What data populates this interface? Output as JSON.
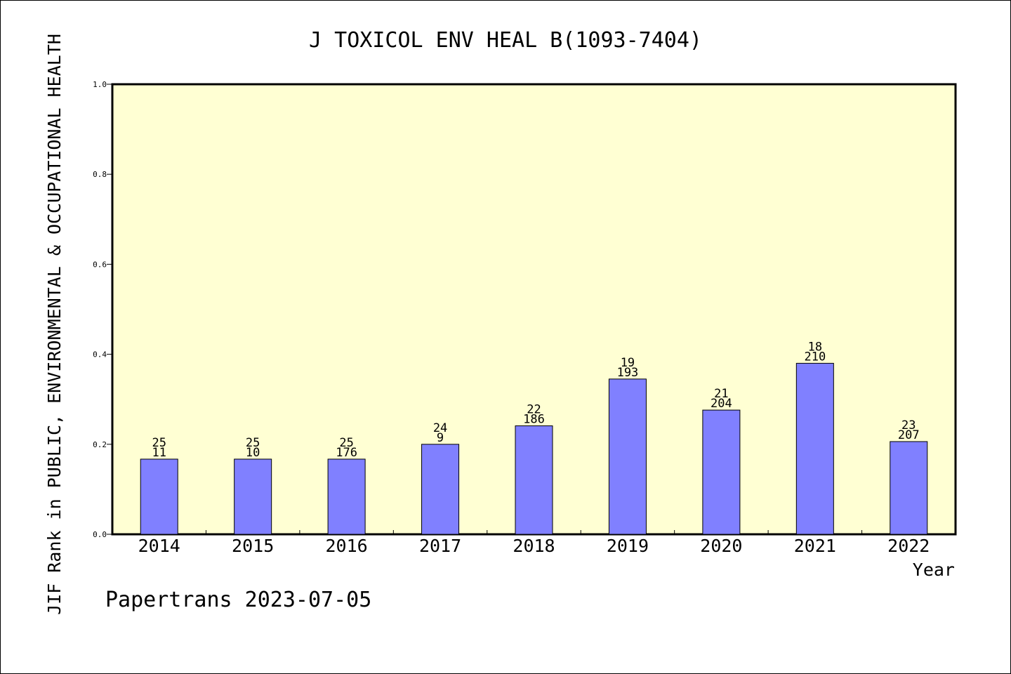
{
  "chart_data": {
    "type": "bar",
    "title": "J TOXICOL ENV HEAL B(1093-7404)",
    "ylabel": "JIF Rank in PUBLIC, ENVIRONMENTAL & OCCUPATIONAL HEALTH",
    "xlabel": "Year",
    "ylim": [
      0,
      1.0
    ],
    "yticks": [
      "0.0",
      "0.2",
      "0.4",
      "0.6",
      "0.8",
      "1.0"
    ],
    "categories": [
      "2014",
      "2015",
      "2016",
      "2017",
      "2018",
      "2019",
      "2020",
      "2021",
      "2022"
    ],
    "values": [
      0.167,
      0.167,
      0.167,
      0.2,
      0.241,
      0.345,
      0.276,
      0.38,
      0.206
    ],
    "labels_top": [
      "25",
      "25",
      "25",
      "24",
      "22",
      "19",
      "21",
      "18",
      "23"
    ],
    "labels_bottom": [
      "11",
      "10",
      "176",
      "9",
      "186",
      "193",
      "204",
      "210",
      "207"
    ],
    "grid": false,
    "colors": {
      "plot_bg": "#ffffd3",
      "bar": "#8080ff"
    }
  },
  "footer": "Papertrans 2023-07-05"
}
